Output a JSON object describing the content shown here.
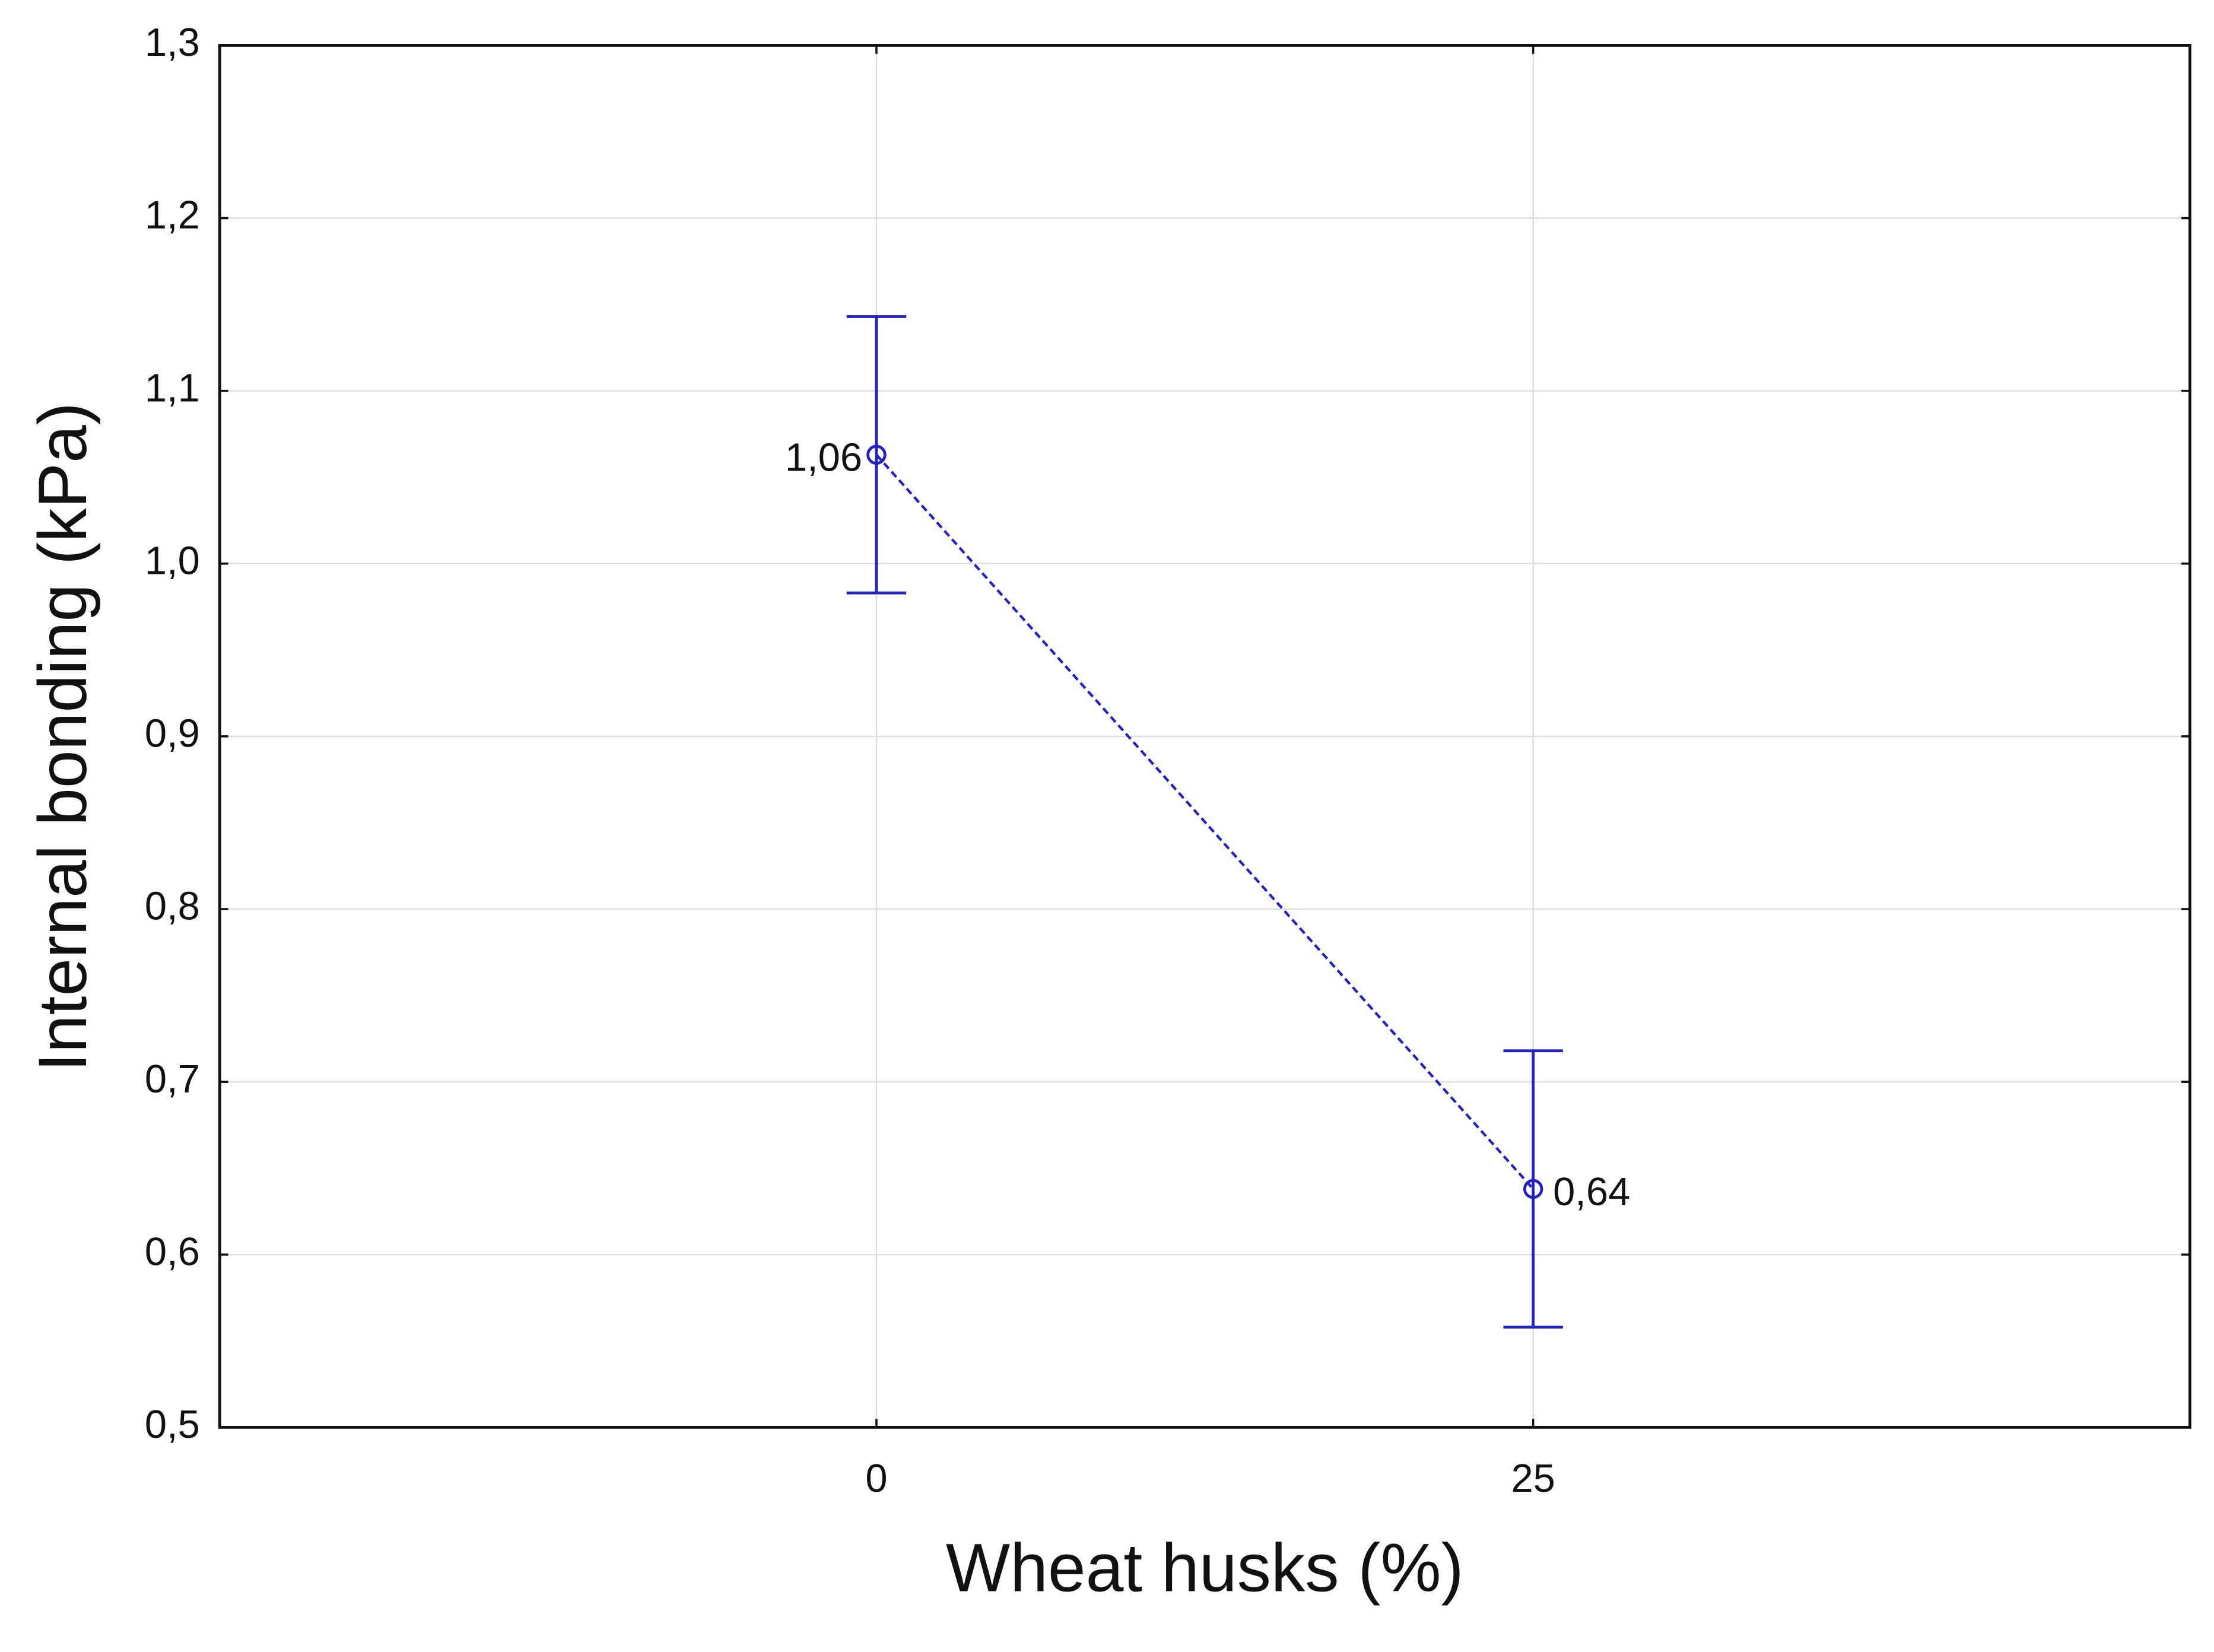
{
  "chart_data": {
    "type": "errorbar-line",
    "x_label": "Wheat husks (%)",
    "y_label": "Internal bonding (kPa)",
    "x": [
      0,
      25
    ],
    "values": [
      1.063,
      0.638
    ],
    "errors": [
      0.08,
      0.08
    ],
    "value_labels": [
      "1,06",
      "0,64"
    ],
    "color": "#2121c4",
    "line_style": "dashed",
    "xlim": [
      -25,
      50
    ],
    "xticks": [
      0,
      25
    ],
    "ylim": [
      0.5,
      1.3
    ],
    "yticks": [
      {
        "value": 0.5,
        "label": "0,5"
      },
      {
        "value": 0.6,
        "label": "0,6"
      },
      {
        "value": 0.7,
        "label": "0,7"
      },
      {
        "value": 0.8,
        "label": "0,8"
      },
      {
        "value": 0.9,
        "label": "0,9"
      },
      {
        "value": 1.0,
        "label": "1,0"
      },
      {
        "value": 1.1,
        "label": "1,1"
      },
      {
        "value": 1.2,
        "label": "1,2"
      },
      {
        "value": 1.3,
        "label": "1,3"
      }
    ],
    "grid": true
  }
}
